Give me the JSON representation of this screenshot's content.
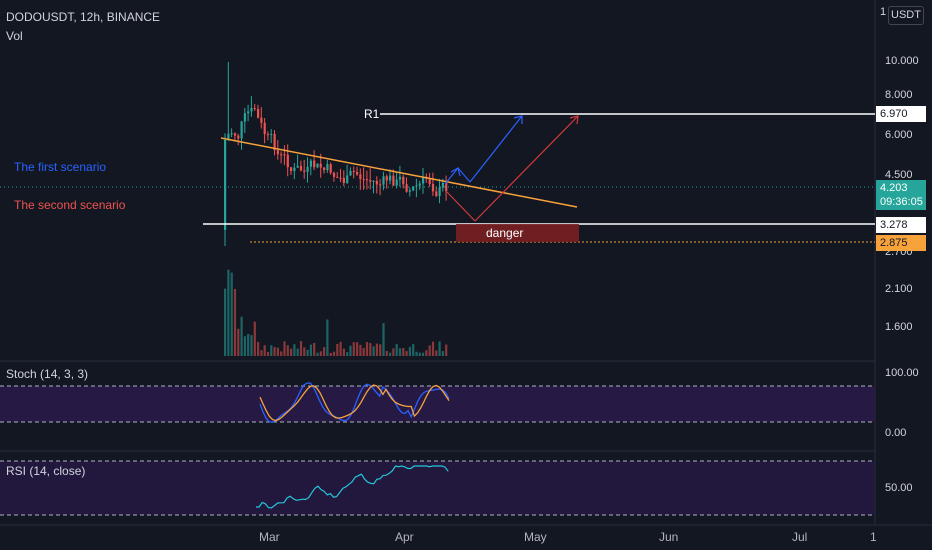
{
  "header": {
    "symbol_line": "DODOUSDT, 12h, BINANCE",
    "volume_label": "Vol",
    "currency_label": "USDT"
  },
  "price_axis": {
    "labels": [
      "10.000",
      "8.000",
      "6.000",
      "4.500",
      "2.700",
      "2.100",
      "1.600"
    ],
    "top_label": "1"
  },
  "tags": {
    "r1_price": "6.970",
    "current_price": "4.203",
    "countdown": "09:36:05",
    "support_price": "3.278",
    "danger_price": "2.875"
  },
  "annotations": {
    "r1_label": "R1",
    "scenario_1": "The first scenario",
    "scenario_2": "The second scenario",
    "danger_label": "danger"
  },
  "indicators": {
    "stoch": {
      "title": "Stoch (14, 3, 3)",
      "upper": "100.00",
      "lower": "0.00"
    },
    "rsi": {
      "title": "RSI (14, close)",
      "mid": "50.00"
    }
  },
  "time_axis": {
    "labels": [
      "Mar",
      "Apr",
      "May",
      "Jun",
      "Jul",
      "1"
    ]
  },
  "colors": {
    "background": "#131722",
    "up": "#26a69a",
    "down": "#ef5350",
    "trendline": "#f7a23b",
    "scenario_1": "#2962ff",
    "scenario_2": "#d13a3a",
    "stoch_band": "#2a1a4a",
    "rsi_line": "#26c6da"
  }
}
